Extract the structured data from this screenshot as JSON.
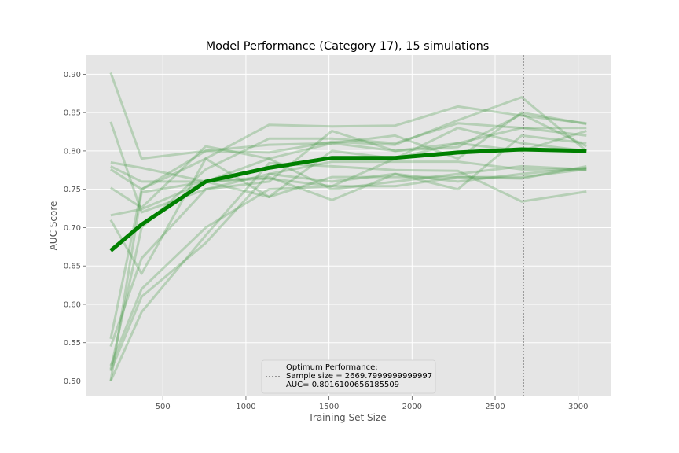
{
  "chart_data": {
    "type": "line",
    "title": "Model Performance (Category 17), 15 simulations",
    "xlabel": "Training Set Size",
    "ylabel": "AUC Score",
    "xlim": [
      40,
      3200
    ],
    "ylim": [
      0.48,
      0.925
    ],
    "xticks": [
      500,
      1000,
      1500,
      2000,
      2500,
      3000
    ],
    "yticks": [
      0.5,
      0.55,
      0.6,
      0.65,
      0.7,
      0.75,
      0.8,
      0.85,
      0.9
    ],
    "xtick_labels": [
      "500",
      "1000",
      "1500",
      "2000",
      "2500",
      "3000"
    ],
    "ytick_labels": [
      "0.50",
      "0.55",
      "0.60",
      "0.65",
      "0.70",
      "0.75",
      "0.80",
      "0.85",
      "0.90"
    ],
    "grid": true,
    "x": [
      186,
      372,
      758,
      1139,
      1518,
      1898,
      2276,
      2660,
      3050
    ],
    "simulations": [
      {
        "values": [
          0.902,
          0.79,
          0.8,
          0.808,
          0.81,
          0.8,
          0.805,
          0.848,
          0.806
        ]
      },
      {
        "values": [
          0.838,
          0.72,
          0.75,
          0.77,
          0.76,
          0.77,
          0.76,
          0.77,
          0.778
        ]
      },
      {
        "values": [
          0.785,
          0.778,
          0.76,
          0.79,
          0.81,
          0.82,
          0.79,
          0.85,
          0.835
        ]
      },
      {
        "values": [
          0.776,
          0.75,
          0.79,
          0.834,
          0.832,
          0.833,
          0.858,
          0.846,
          0.836
        ]
      },
      {
        "values": [
          0.752,
          0.726,
          0.806,
          0.79,
          0.75,
          0.76,
          0.77,
          0.78,
          0.776
        ]
      },
      {
        "values": [
          0.716,
          0.724,
          0.76,
          0.74,
          0.766,
          0.766,
          0.766,
          0.766,
          0.776
        ]
      },
      {
        "values": [
          0.71,
          0.64,
          0.79,
          0.74,
          0.8,
          0.79,
          0.83,
          0.81,
          0.8
        ]
      },
      {
        "values": [
          0.78,
          0.76,
          0.76,
          0.764,
          0.754,
          0.754,
          0.766,
          0.764,
          0.78
        ]
      },
      {
        "values": [
          0.555,
          0.75,
          0.8,
          0.798,
          0.812,
          0.808,
          0.84,
          0.87,
          0.8
        ]
      },
      {
        "values": [
          0.545,
          0.66,
          0.75,
          0.76,
          0.826,
          0.8,
          0.81,
          0.83,
          0.83
        ]
      },
      {
        "values": [
          0.515,
          0.7,
          0.776,
          0.816,
          0.816,
          0.81,
          0.836,
          0.83,
          0.82
        ]
      },
      {
        "values": [
          0.5,
          0.59,
          0.69,
          0.784,
          0.78,
          0.775,
          0.774,
          0.734,
          0.747
        ]
      },
      {
        "values": [
          0.5,
          0.746,
          0.76,
          0.766,
          0.736,
          0.77,
          0.75,
          0.82,
          0.81
        ]
      },
      {
        "values": [
          0.513,
          0.61,
          0.68,
          0.77,
          0.786,
          0.786,
          0.786,
          0.776,
          0.776
        ]
      },
      {
        "values": [
          0.52,
          0.62,
          0.7,
          0.75,
          0.754,
          0.79,
          0.81,
          0.8,
          0.826
        ]
      }
    ],
    "mean_series": {
      "values": [
        0.67,
        0.704,
        0.76,
        0.778,
        0.791,
        0.791,
        0.798,
        0.802,
        0.8
      ]
    },
    "optimum_line_x": 2669.7999999999997,
    "legend": {
      "placement": "lower center",
      "lines": [
        "Optimum Performance:",
        "Sample size = 2669.7999999999997",
        "AUC= 0.8016100656185509"
      ]
    },
    "colors": {
      "background": "#e5e5e5",
      "grid": "#ffffff",
      "simulation": "#4a9a4a",
      "mean": "#008000",
      "optimum": "#777777"
    }
  }
}
